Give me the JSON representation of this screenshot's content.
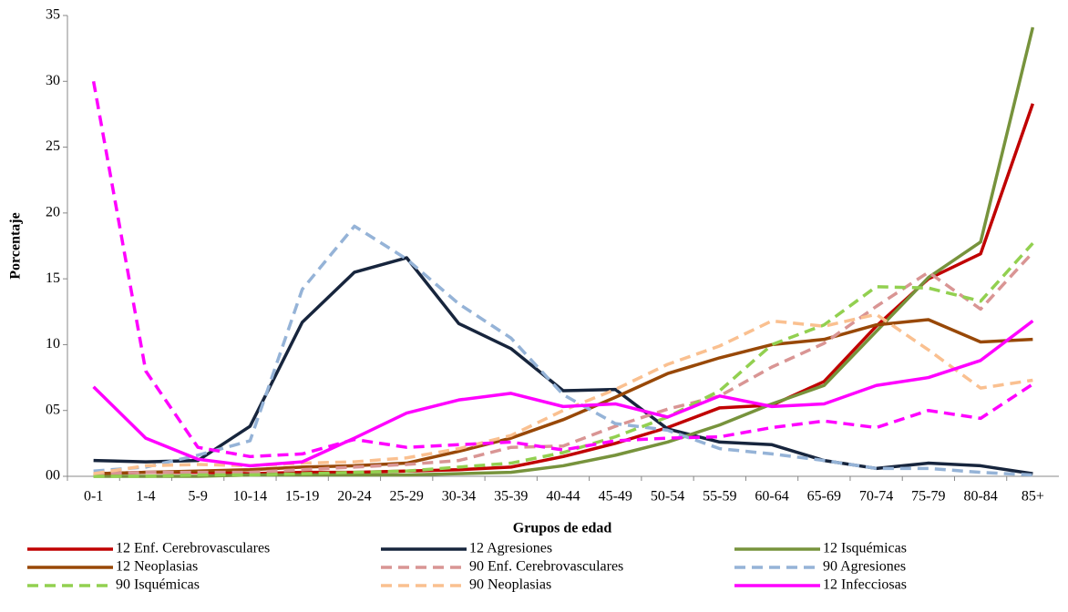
{
  "chart_data": {
    "type": "line",
    "x_label": "Grupos de edad",
    "y_label": "Porcentaje",
    "categories": [
      "0-1",
      "1-4",
      "5-9",
      "10-14",
      "15-19",
      "20-24",
      "25-29",
      "30-34",
      "35-39",
      "40-44",
      "45-49",
      "50-54",
      "55-59",
      "60-64",
      "65-69",
      "70-74",
      "75-79",
      "80-84",
      "85+"
    ],
    "ylim": [
      0,
      35
    ],
    "yticks": [
      {
        "value": 0,
        "label": "00"
      },
      {
        "value": 5,
        "label": "05"
      },
      10,
      15,
      20,
      25,
      30,
      35
    ],
    "series": [
      {
        "name": "12 Enf. Cerebrovasculares",
        "color": "#c00000",
        "dashed": false,
        "values": [
          0.2,
          0.3,
          0.3,
          0.2,
          0.3,
          0.3,
          0.4,
          0.5,
          0.7,
          1.5,
          2.5,
          3.7,
          5.2,
          5.4,
          7.2,
          11.4,
          15,
          16.9,
          28.3
        ]
      },
      {
        "name": "12 Agresiones",
        "color": "#17253d",
        "dashed": false,
        "values": [
          1.2,
          1.1,
          1.2,
          3.8,
          11.7,
          15.5,
          16.6,
          11.6,
          9.7,
          6.5,
          6.6,
          3.6,
          2.6,
          2.4,
          1.2,
          0.6,
          1.0,
          0.8,
          0.2
        ]
      },
      {
        "name": "12 Isquémicas",
        "color": "#77933c",
        "dashed": false,
        "values": [
          0,
          0,
          0,
          0.1,
          0.1,
          0.1,
          0.1,
          0.2,
          0.3,
          0.8,
          1.6,
          2.6,
          3.9,
          5.5,
          6.9,
          11,
          15.1,
          17.8,
          34.1
        ]
      },
      {
        "name": "12 Neoplasias",
        "color": "#984807",
        "dashed": false,
        "values": [
          0.2,
          0.3,
          0.4,
          0.5,
          0.7,
          0.8,
          1.0,
          1.9,
          2.9,
          4.3,
          6,
          7.8,
          9,
          10,
          10.4,
          11.5,
          11.9,
          10.2,
          10.4
        ]
      },
      {
        "name": "90 Enf. Cerebrovasculares",
        "color": "#d99594",
        "dashed": true,
        "values": [
          0.2,
          0.3,
          0.3,
          0.3,
          0.5,
          0.7,
          0.9,
          1.2,
          2.2,
          2.3,
          3.8,
          5.1,
          6.1,
          8.3,
          10.1,
          12.9,
          15.5,
          12.7,
          17
        ]
      },
      {
        "name": "90 Agresiones",
        "color": "#95b3d7",
        "dashed": true,
        "values": [
          0.4,
          0.7,
          1.6,
          2.7,
          14.2,
          19,
          16.5,
          13.1,
          10.5,
          6.2,
          4,
          3.5,
          2.1,
          1.7,
          1.2,
          0.6,
          0.6,
          0.3,
          0.1
        ]
      },
      {
        "name": "90 Isquémicas",
        "color": "#92d050",
        "dashed": true,
        "values": [
          0,
          0,
          0.1,
          0.1,
          0.2,
          0.3,
          0.4,
          0.7,
          1,
          1.8,
          3.0,
          4.5,
          6.5,
          10,
          11.5,
          14.4,
          14.3,
          13.3,
          17.7
        ]
      },
      {
        "name": "90 Neoplasias",
        "color": "#fac090",
        "dashed": true,
        "values": [
          0.2,
          0.8,
          0.9,
          0.8,
          1,
          1.1,
          1.4,
          2.1,
          3.1,
          5,
          6.6,
          8.5,
          9.9,
          11.8,
          11.4,
          12.3,
          9.6,
          6.7,
          7.3
        ]
      },
      {
        "name": "12 Infecciosas",
        "color": "#ff00ff",
        "dashed": false,
        "values": [
          6.8,
          2.9,
          1.3,
          0.8,
          1.1,
          2.9,
          4.8,
          5.8,
          6.3,
          5.3,
          5.5,
          4.5,
          6.1,
          5.3,
          5.5,
          6.9,
          7.5,
          8.8,
          11.8
        ]
      },
      {
        "color": "#ff00ff",
        "dashed": true,
        "values": [
          30,
          8,
          2.2,
          1.5,
          1.7,
          2.8,
          2.2,
          2.4,
          2.6,
          2,
          2.7,
          2.9,
          3,
          3.7,
          4.2,
          3.7,
          5,
          4.4,
          7
        ]
      }
    ]
  }
}
